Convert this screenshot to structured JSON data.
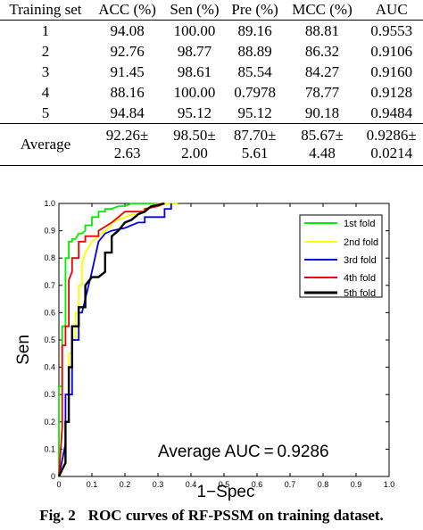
{
  "table": {
    "headers": [
      "Training set",
      "ACC (%)",
      "Sen (%)",
      "Pre (%)",
      "MCC (%)",
      "AUC"
    ],
    "rows": [
      [
        "1",
        "94.08",
        "100.00",
        "89.16",
        "88.81",
        "0.9553"
      ],
      [
        "2",
        "92.76",
        "98.77",
        "88.89",
        "86.32",
        "0.9106"
      ],
      [
        "3",
        "91.45",
        "98.61",
        "85.54",
        "84.27",
        "0.9160"
      ],
      [
        "4",
        "88.16",
        "100.00",
        "0.7978",
        "78.77",
        "0.9128"
      ],
      [
        "5",
        "94.84",
        "95.12",
        "95.12",
        "90.18",
        "0.9484"
      ]
    ],
    "average": {
      "label": "Average",
      "cells": [
        [
          "92.26±",
          "2.63"
        ],
        [
          "98.50±",
          "2.00"
        ],
        [
          "87.70±",
          "5.61"
        ],
        [
          "85.67±",
          "4.48"
        ],
        [
          "0.9286±",
          "0.0214"
        ]
      ]
    }
  },
  "chart_data": {
    "type": "line",
    "title": "",
    "xlabel": "1−Spec",
    "ylabel": "Sen",
    "xlim": [
      0,
      1
    ],
    "ylim": [
      0,
      1
    ],
    "xticks": [
      "0",
      "0.1",
      "0.2",
      "0.3",
      "0.4",
      "0.5",
      "0.6",
      "0.7",
      "0.8",
      "0.9",
      "1.0"
    ],
    "yticks": [
      "0",
      "0.1",
      "0.2",
      "0.3",
      "0.4",
      "0.5",
      "0.6",
      "0.7",
      "0.8",
      "0.9",
      "1.0"
    ],
    "grid": false,
    "legend_position": "top-right",
    "annotation": "Average AUC = 0.9286",
    "series": [
      {
        "name": "1st fold",
        "color": "#00ee00",
        "x": [
          0,
          0,
          0.01,
          0.01,
          0.02,
          0.02,
          0.03,
          0.03,
          0.04,
          0.04,
          0.05,
          0.06,
          0.07,
          0.08,
          0.08,
          0.1,
          0.1,
          0.12,
          0.12,
          0.14,
          0.14,
          0.16,
          0.18,
          0.2,
          0.22,
          0.22,
          0.24,
          0.26,
          0.3,
          0.36
        ],
        "y": [
          0,
          0.33,
          0.33,
          0.55,
          0.55,
          0.8,
          0.8,
          0.86,
          0.86,
          0.87,
          0.87,
          0.89,
          0.89,
          0.9,
          0.92,
          0.92,
          0.95,
          0.95,
          0.97,
          0.97,
          0.98,
          0.98,
          0.99,
          0.99,
          1.0,
          1.0,
          1.0,
          1.0,
          1.0,
          1.0
        ]
      },
      {
        "name": "2nd fold",
        "color": "#ffff00",
        "x": [
          0,
          0.02,
          0.02,
          0.03,
          0.03,
          0.04,
          0.04,
          0.05,
          0.05,
          0.06,
          0.06,
          0.07,
          0.07,
          0.08,
          0.1,
          0.12,
          0.14,
          0.16,
          0.16,
          0.18,
          0.2,
          0.22,
          0.24,
          0.26,
          0.28,
          0.3,
          0.32,
          0.36
        ],
        "y": [
          0,
          0.1,
          0.2,
          0.2,
          0.45,
          0.45,
          0.5,
          0.5,
          0.6,
          0.6,
          0.7,
          0.7,
          0.78,
          0.82,
          0.86,
          0.88,
          0.9,
          0.92,
          0.93,
          0.94,
          0.95,
          0.96,
          0.96,
          0.98,
          0.99,
          1.0,
          1.0,
          1.0
        ]
      },
      {
        "name": "3rd fold",
        "color": "#0000ee",
        "x": [
          0,
          0.02,
          0.02,
          0.04,
          0.04,
          0.06,
          0.06,
          0.07,
          0.08,
          0.1,
          0.12,
          0.14,
          0.16,
          0.2,
          0.24,
          0.26,
          0.26,
          0.3,
          0.32,
          0.32,
          0.34,
          0.34
        ],
        "y": [
          0,
          0.12,
          0.3,
          0.3,
          0.5,
          0.5,
          0.6,
          0.6,
          0.65,
          0.75,
          0.86,
          0.89,
          0.9,
          0.91,
          0.93,
          0.93,
          0.95,
          0.95,
          0.95,
          0.98,
          0.98,
          1.0
        ]
      },
      {
        "name": "4th fold",
        "color": "#ee0000",
        "x": [
          0,
          0.01,
          0.01,
          0.02,
          0.02,
          0.03,
          0.03,
          0.04,
          0.04,
          0.06,
          0.06,
          0.08,
          0.08,
          0.12,
          0.12,
          0.16,
          0.18,
          0.2,
          0.24,
          0.26,
          0.26,
          0.3,
          0.32
        ],
        "y": [
          0,
          0.18,
          0.48,
          0.48,
          0.55,
          0.55,
          0.72,
          0.75,
          0.8,
          0.8,
          0.86,
          0.86,
          0.88,
          0.88,
          0.9,
          0.93,
          0.95,
          0.97,
          0.97,
          0.97,
          0.98,
          0.99,
          1.0
        ]
      },
      {
        "name": "5th fold",
        "color": "#000000",
        "x": [
          0,
          0.02,
          0.02,
          0.03,
          0.03,
          0.04,
          0.04,
          0.06,
          0.06,
          0.08,
          0.08,
          0.1,
          0.12,
          0.14,
          0.14,
          0.16,
          0.16,
          0.18,
          0.2,
          0.22,
          0.24,
          0.26,
          0.28,
          0.32
        ],
        "y": [
          0,
          0.05,
          0.2,
          0.2,
          0.4,
          0.4,
          0.55,
          0.55,
          0.62,
          0.62,
          0.7,
          0.73,
          0.73,
          0.75,
          0.82,
          0.82,
          0.88,
          0.9,
          0.93,
          0.94,
          0.96,
          0.97,
          0.99,
          1.0
        ]
      }
    ]
  },
  "caption": {
    "figure_label": "Fig. 2",
    "text": "ROC curves of RF-PSSM on training dataset."
  }
}
